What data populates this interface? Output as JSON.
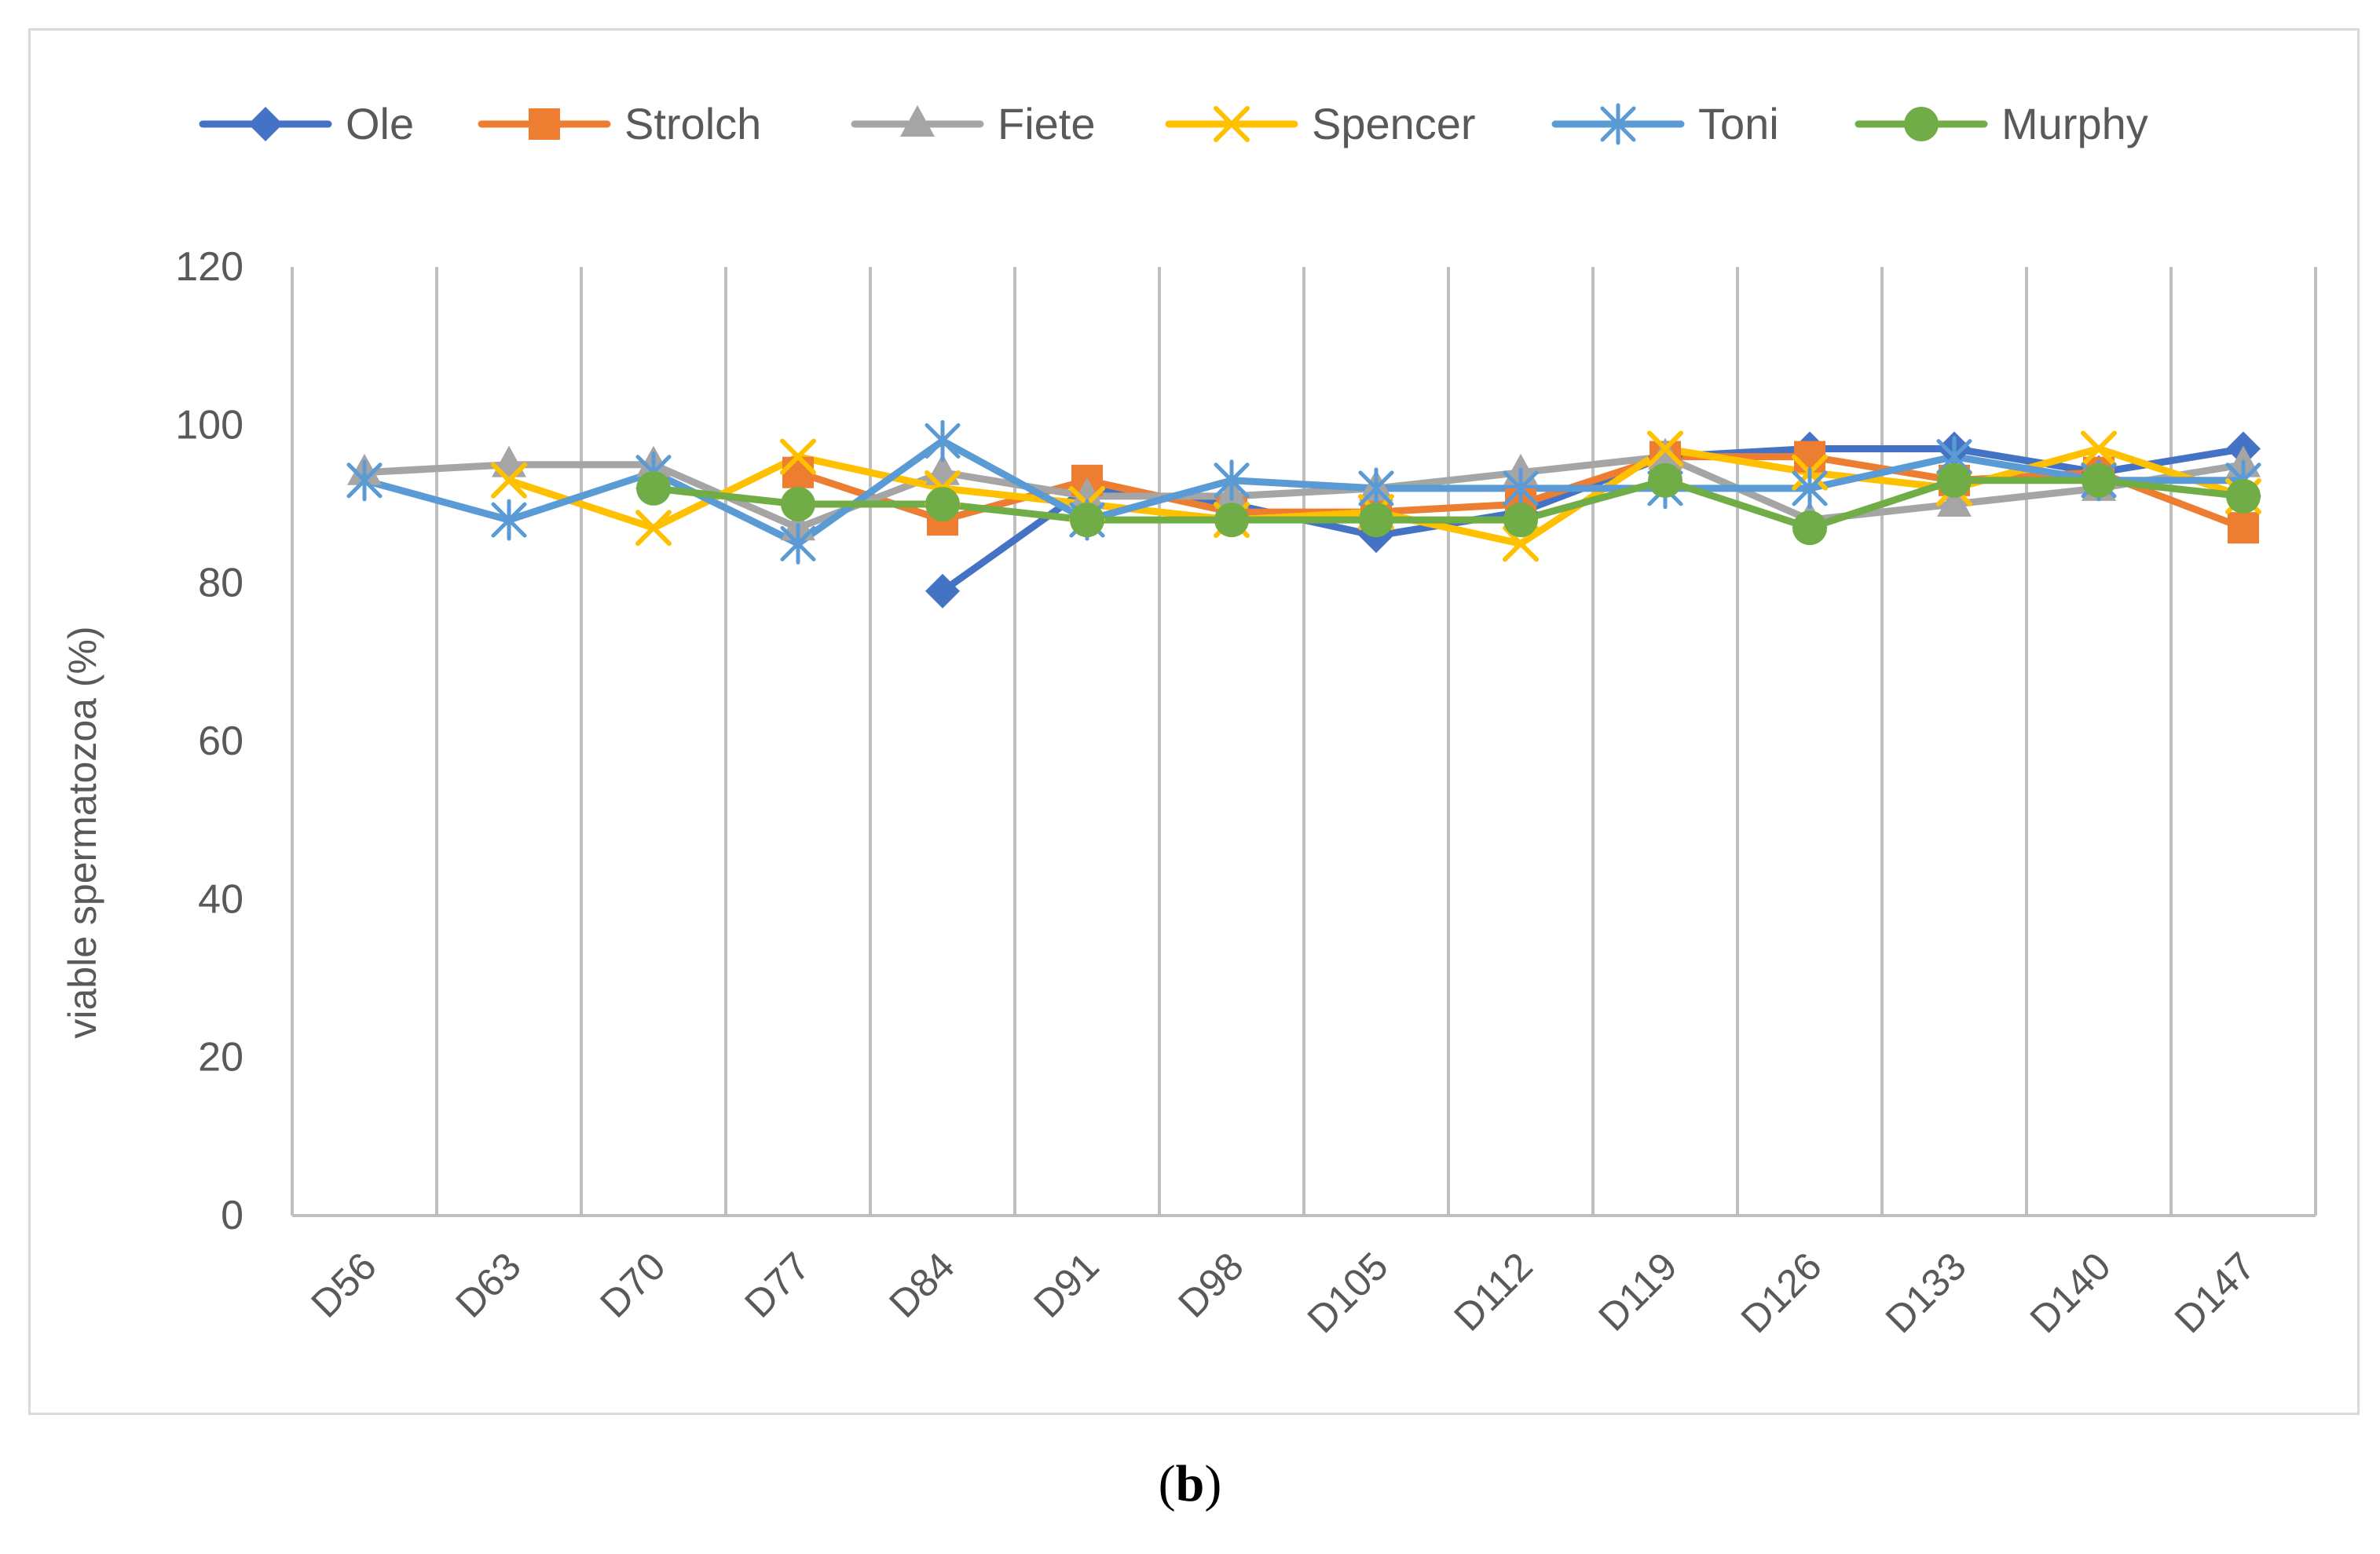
{
  "chart_data": {
    "type": "line",
    "title": "",
    "xlabel": "",
    "ylabel": "viable spermatozoa (%)",
    "ylim": [
      0,
      120
    ],
    "yticks": [
      0,
      20,
      40,
      60,
      80,
      100,
      120
    ],
    "grid": "vertical",
    "legend": "top",
    "categories": [
      "D56",
      "D63",
      "D70",
      "D77",
      "D84",
      "D91",
      "D98",
      "D105",
      "D112",
      "D119",
      "D126",
      "D133",
      "D140",
      "D147"
    ],
    "series": [
      {
        "name": "Ole",
        "color": "#4472C4",
        "marker": "diamond",
        "values": [
          null,
          null,
          null,
          null,
          79,
          92,
          90,
          86,
          89,
          96,
          97,
          97,
          94,
          97
        ]
      },
      {
        "name": "Strolch",
        "color": "#ED7D31",
        "marker": "square",
        "values": [
          null,
          null,
          null,
          94,
          88,
          93,
          89,
          89,
          90,
          96,
          96,
          93,
          94,
          87
        ]
      },
      {
        "name": "Fiete",
        "color": "#A5A5A5",
        "marker": "triangle",
        "values": [
          94,
          95,
          95,
          87,
          94,
          91,
          91,
          92,
          94,
          96,
          88,
          90,
          92,
          95
        ]
      },
      {
        "name": "Spencer",
        "color": "#FFC000",
        "marker": "x",
        "values": [
          null,
          93,
          87,
          96,
          92,
          90,
          88,
          89,
          85,
          97,
          94,
          92,
          97,
          91
        ]
      },
      {
        "name": "Toni",
        "color": "#5B9BD5",
        "marker": "asterisk",
        "values": [
          93,
          88,
          94,
          85,
          98,
          88,
          93,
          92,
          92,
          92,
          92,
          96,
          93,
          93
        ]
      },
      {
        "name": "Murphy",
        "color": "#70AD47",
        "marker": "circle",
        "values": [
          null,
          null,
          92,
          90,
          90,
          88,
          88,
          88,
          88,
          93,
          87,
          93,
          93,
          91
        ]
      }
    ]
  },
  "caption": {
    "open": "(",
    "label": "b",
    "close": ")"
  }
}
